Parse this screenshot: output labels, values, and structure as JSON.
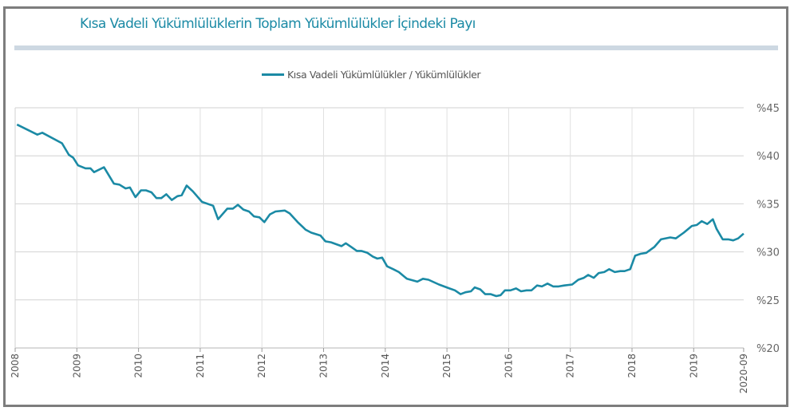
{
  "chart_data": {
    "type": "line",
    "title": "Kısa Vadeli Yükümlülüklerin Toplam Yükümlülükler İçindeki Payı",
    "xlabel": "",
    "ylabel": "",
    "legend_position": "top-center",
    "grid": true,
    "line_color": "#1b8aa5",
    "xlim": [
      2008,
      2019.81
    ],
    "ylim": [
      20,
      45
    ],
    "x_ticks": [
      {
        "label": "2008",
        "value": 2008
      },
      {
        "label": "2009",
        "value": 2009
      },
      {
        "label": "2010",
        "value": 2010
      },
      {
        "label": "2011",
        "value": 2011
      },
      {
        "label": "2012",
        "value": 2012
      },
      {
        "label": "2013",
        "value": 2013
      },
      {
        "label": "2014",
        "value": 2014
      },
      {
        "label": "2015",
        "value": 2015
      },
      {
        "label": "2016",
        "value": 2016
      },
      {
        "label": "2017",
        "value": 2017
      },
      {
        "label": "2018",
        "value": 2018
      },
      {
        "label": "2019",
        "value": 2019
      },
      {
        "label": "2020-09",
        "value": 2019.81
      }
    ],
    "y_ticks": [
      {
        "label": "%45",
        "value": 45
      },
      {
        "label": "%40",
        "value": 40
      },
      {
        "label": "%35",
        "value": 35
      },
      {
        "label": "%30",
        "value": 30
      },
      {
        "label": "%25",
        "value": 25
      },
      {
        "label": "%20",
        "value": 20
      }
    ],
    "series": [
      {
        "name": "Kısa Vadeli Yükümlülükler / Yükümlülükler",
        "x": [
          2008.03,
          2008.36,
          2008.44,
          2008.76,
          2008.87,
          2008.94,
          2009.02,
          2009.14,
          2009.22,
          2009.28,
          2009.44,
          2009.6,
          2009.69,
          2009.79,
          2009.86,
          2009.95,
          2010.04,
          2010.12,
          2010.21,
          2010.29,
          2010.37,
          2010.45,
          2010.54,
          2010.63,
          2010.7,
          2010.78,
          2010.88,
          2011.03,
          2011.21,
          2011.29,
          2011.44,
          2011.53,
          2011.61,
          2011.7,
          2011.79,
          2011.87,
          2011.96,
          2012.04,
          2012.13,
          2012.22,
          2012.37,
          2012.45,
          2012.58,
          2012.71,
          2012.8,
          2012.95,
          2013.03,
          2013.12,
          2013.29,
          2013.36,
          2013.45,
          2013.54,
          2013.61,
          2013.71,
          2013.8,
          2013.87,
          2013.95,
          2014.03,
          2014.13,
          2014.22,
          2014.35,
          2014.52,
          2014.61,
          2014.7,
          2014.87,
          2015.04,
          2015.13,
          2015.22,
          2015.3,
          2015.39,
          2015.45,
          2015.54,
          2015.62,
          2015.71,
          2015.8,
          2015.87,
          2015.94,
          2016.03,
          2016.12,
          2016.2,
          2016.29,
          2016.37,
          2016.46,
          2016.54,
          2016.63,
          2016.72,
          2016.81,
          2016.9,
          2017.03,
          2017.13,
          2017.22,
          2017.29,
          2017.38,
          2017.46,
          2017.55,
          2017.63,
          2017.72,
          2017.81,
          2017.88,
          2017.97,
          2018.05,
          2018.14,
          2018.23,
          2018.36,
          2018.47,
          2018.62,
          2018.71,
          2018.84,
          2018.97,
          2019.05,
          2019.13,
          2019.22,
          2019.31,
          2019.37,
          2019.47,
          2019.56,
          2019.64,
          2019.72,
          2019.81
        ],
        "values": [
          43.25,
          42.2,
          42.4,
          41.3,
          40.1,
          39.8,
          39.0,
          38.7,
          38.7,
          38.3,
          38.8,
          37.1,
          37.0,
          36.6,
          36.7,
          35.7,
          36.4,
          36.4,
          36.2,
          35.6,
          35.6,
          36.0,
          35.4,
          35.8,
          35.9,
          36.9,
          36.3,
          35.2,
          34.8,
          33.4,
          34.5,
          34.5,
          34.9,
          34.4,
          34.2,
          33.7,
          33.6,
          33.1,
          33.9,
          34.2,
          34.3,
          34.0,
          33.1,
          32.3,
          32.0,
          31.7,
          31.1,
          31.0,
          30.6,
          30.9,
          30.5,
          30.1,
          30.1,
          29.9,
          29.5,
          29.3,
          29.4,
          28.5,
          28.2,
          27.9,
          27.2,
          26.9,
          27.2,
          27.1,
          26.6,
          26.2,
          26.0,
          25.6,
          25.8,
          25.9,
          26.3,
          26.1,
          25.6,
          25.6,
          25.4,
          25.5,
          26.0,
          26.0,
          26.2,
          25.9,
          26.0,
          26.0,
          26.5,
          26.4,
          26.7,
          26.4,
          26.4,
          26.5,
          26.6,
          27.1,
          27.3,
          27.6,
          27.3,
          27.8,
          27.9,
          28.2,
          27.9,
          28.0,
          28.0,
          28.2,
          29.6,
          29.8,
          29.9,
          30.5,
          31.3,
          31.5,
          31.4,
          32.0,
          32.7,
          32.8,
          33.2,
          32.9,
          33.4,
          32.4,
          31.3,
          31.3,
          31.2,
          31.4,
          31.9
        ]
      }
    ]
  }
}
